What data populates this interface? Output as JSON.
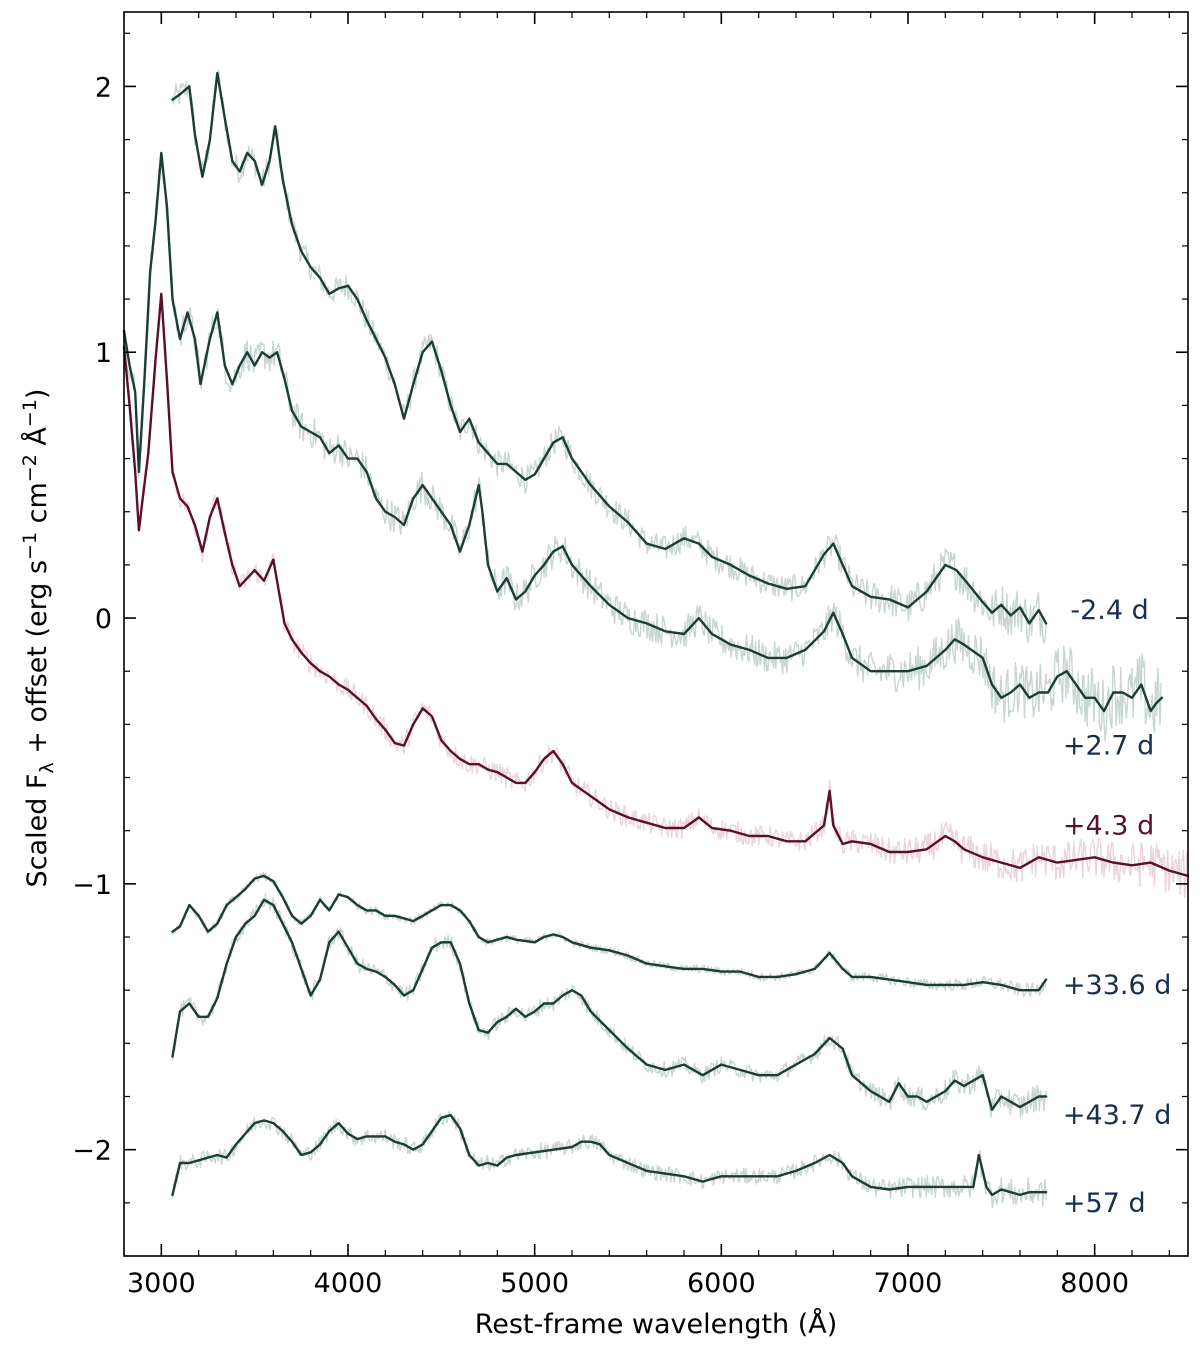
{
  "chart_data": {
    "type": "line",
    "title": "",
    "xlabel": "Rest-frame wavelength (Å)",
    "ylabel_main": "Scaled F",
    "ylabel_sub": "λ",
    "ylabel_rest": " + offset (erg s",
    "ylabel_unit_parts": [
      {
        "text": " + offset (erg s",
        "sup": false
      },
      {
        "text": "−1",
        "sup": true
      },
      {
        "text": " cm",
        "sup": false
      },
      {
        "text": "−2",
        "sup": true
      },
      {
        "text": " Å",
        "sup": false
      },
      {
        "text": "−1",
        "sup": true
      },
      {
        "text": ")",
        "sup": false
      }
    ],
    "xlim": [
      2800,
      8500
    ],
    "ylim": [
      -2.4,
      2.28
    ],
    "xticks": [
      3000,
      4000,
      5000,
      6000,
      7000,
      8000
    ],
    "xtick_labels": [
      "3000",
      "4000",
      "5000",
      "6000",
      "7000",
      "8000"
    ],
    "yticks": [
      2,
      1,
      0,
      -1,
      -2
    ],
    "ytick_labels": [
      "2",
      "1",
      "0",
      "−1",
      "−2"
    ],
    "grid": false,
    "colors": {
      "main_line": "#1b3d36",
      "noise": "#c7d6d2",
      "highlight_line": "#5a0f2f",
      "highlight_noise": "#ecd4dd",
      "label_dark": "#17304e",
      "label_highlight": "#5a0f2f",
      "axis": "#000000"
    },
    "series": [
      {
        "name": "-2.4 d",
        "label": "-2.4 d",
        "label_x": 7870,
        "label_y": 0.03,
        "highlight": false,
        "noise_amp": 0.05,
        "x": [
          3060,
          3100,
          3150,
          3180,
          3220,
          3260,
          3300,
          3340,
          3380,
          3420,
          3460,
          3500,
          3540,
          3580,
          3610,
          3650,
          3700,
          3750,
          3800,
          3850,
          3900,
          3950,
          4000,
          4050,
          4100,
          4150,
          4200,
          4250,
          4300,
          4350,
          4400,
          4450,
          4500,
          4550,
          4600,
          4650,
          4700,
          4750,
          4800,
          4850,
          4900,
          4950,
          5000,
          5050,
          5100,
          5150,
          5200,
          5300,
          5400,
          5500,
          5600,
          5700,
          5800,
          5880,
          5950,
          6050,
          6150,
          6250,
          6350,
          6450,
          6550,
          6600,
          6650,
          6700,
          6800,
          6900,
          7000,
          7100,
          7200,
          7260,
          7320,
          7400,
          7450,
          7500,
          7550,
          7600,
          7650,
          7700,
          7740
        ],
        "y": [
          1.95,
          1.97,
          2.0,
          1.82,
          1.66,
          1.8,
          2.05,
          1.88,
          1.72,
          1.68,
          1.75,
          1.72,
          1.63,
          1.72,
          1.85,
          1.65,
          1.48,
          1.38,
          1.32,
          1.28,
          1.22,
          1.24,
          1.25,
          1.2,
          1.12,
          1.05,
          0.98,
          0.88,
          0.75,
          0.88,
          1.0,
          1.04,
          0.93,
          0.8,
          0.7,
          0.75,
          0.66,
          0.62,
          0.58,
          0.58,
          0.55,
          0.52,
          0.54,
          0.6,
          0.66,
          0.68,
          0.6,
          0.5,
          0.42,
          0.36,
          0.28,
          0.26,
          0.3,
          0.28,
          0.23,
          0.2,
          0.16,
          0.13,
          0.11,
          0.12,
          0.24,
          0.28,
          0.2,
          0.12,
          0.08,
          0.07,
          0.04,
          0.1,
          0.2,
          0.18,
          0.13,
          0.06,
          0.02,
          0.05,
          0.01,
          0.04,
          -0.02,
          0.03,
          -0.02
        ]
      },
      {
        "name": "+2.7 d",
        "label": "+2.7 d",
        "label_x": 7830,
        "label_y": -0.48,
        "highlight": false,
        "noise_amp": 0.06,
        "x": [
          2800,
          2830,
          2860,
          2880,
          2910,
          2940,
          2970,
          3000,
          3030,
          3060,
          3100,
          3140,
          3180,
          3210,
          3260,
          3300,
          3340,
          3380,
          3420,
          3460,
          3500,
          3540,
          3580,
          3620,
          3660,
          3700,
          3750,
          3800,
          3850,
          3900,
          3950,
          4000,
          4050,
          4100,
          4150,
          4200,
          4250,
          4300,
          4350,
          4400,
          4450,
          4500,
          4550,
          4600,
          4650,
          4700,
          4720,
          4750,
          4800,
          4850,
          4900,
          4950,
          5000,
          5050,
          5100,
          5150,
          5200,
          5300,
          5400,
          5500,
          5600,
          5700,
          5800,
          5880,
          5950,
          6050,
          6150,
          6250,
          6350,
          6450,
          6550,
          6600,
          6650,
          6700,
          6800,
          6900,
          7000,
          7100,
          7200,
          7250,
          7300,
          7400,
          7450,
          7500,
          7550,
          7600,
          7650,
          7700,
          7750,
          7800,
          7850,
          7900,
          7950,
          8000,
          8050,
          8100,
          8150,
          8200,
          8250,
          8300,
          8330,
          8360
        ],
        "y": [
          1.08,
          0.95,
          0.85,
          0.55,
          0.9,
          1.3,
          1.5,
          1.75,
          1.55,
          1.2,
          1.05,
          1.15,
          1.05,
          0.88,
          1.05,
          1.15,
          0.95,
          0.88,
          0.95,
          1.0,
          0.95,
          1.0,
          0.98,
          1.0,
          0.9,
          0.78,
          0.72,
          0.7,
          0.68,
          0.62,
          0.65,
          0.6,
          0.6,
          0.55,
          0.45,
          0.4,
          0.38,
          0.35,
          0.45,
          0.5,
          0.45,
          0.4,
          0.35,
          0.25,
          0.35,
          0.5,
          0.4,
          0.2,
          0.1,
          0.15,
          0.07,
          0.1,
          0.16,
          0.2,
          0.25,
          0.27,
          0.2,
          0.12,
          0.05,
          0.0,
          -0.02,
          -0.05,
          -0.06,
          0.0,
          -0.06,
          -0.1,
          -0.12,
          -0.15,
          -0.15,
          -0.12,
          -0.05,
          0.02,
          -0.06,
          -0.15,
          -0.2,
          -0.2,
          -0.2,
          -0.18,
          -0.12,
          -0.08,
          -0.1,
          -0.15,
          -0.25,
          -0.3,
          -0.28,
          -0.25,
          -0.3,
          -0.28,
          -0.28,
          -0.22,
          -0.2,
          -0.25,
          -0.3,
          -0.3,
          -0.35,
          -0.28,
          -0.28,
          -0.3,
          -0.25,
          -0.35,
          -0.32,
          -0.3
        ]
      },
      {
        "name": "+4.3 d",
        "label": "+4.3 d",
        "label_x": 7830,
        "label_y": -0.78,
        "highlight": true,
        "noise_amp": 0.04,
        "x": [
          2800,
          2830,
          2860,
          2880,
          2900,
          2930,
          2950,
          2970,
          3000,
          3030,
          3060,
          3100,
          3140,
          3180,
          3220,
          3260,
          3300,
          3340,
          3380,
          3420,
          3460,
          3500,
          3550,
          3600,
          3630,
          3660,
          3700,
          3750,
          3800,
          3850,
          3900,
          3950,
          4000,
          4050,
          4100,
          4150,
          4200,
          4250,
          4300,
          4350,
          4400,
          4450,
          4500,
          4550,
          4600,
          4650,
          4700,
          4750,
          4800,
          4850,
          4900,
          4950,
          5000,
          5050,
          5100,
          5150,
          5200,
          5300,
          5400,
          5500,
          5600,
          5700,
          5800,
          5880,
          5950,
          6050,
          6150,
          6250,
          6350,
          6450,
          6550,
          6580,
          6600,
          6650,
          6700,
          6800,
          6900,
          7000,
          7100,
          7200,
          7250,
          7300,
          7400,
          7500,
          7600,
          7700,
          7800,
          7900,
          8000,
          8100,
          8200,
          8300,
          8400,
          8500
        ],
        "y": [
          1.02,
          0.8,
          0.55,
          0.33,
          0.45,
          0.62,
          0.8,
          0.98,
          1.22,
          0.9,
          0.55,
          0.45,
          0.42,
          0.35,
          0.25,
          0.38,
          0.45,
          0.32,
          0.2,
          0.12,
          0.15,
          0.18,
          0.14,
          0.22,
          0.1,
          -0.02,
          -0.08,
          -0.13,
          -0.17,
          -0.2,
          -0.22,
          -0.25,
          -0.27,
          -0.3,
          -0.33,
          -0.38,
          -0.42,
          -0.47,
          -0.48,
          -0.4,
          -0.34,
          -0.37,
          -0.46,
          -0.5,
          -0.53,
          -0.55,
          -0.55,
          -0.57,
          -0.58,
          -0.6,
          -0.62,
          -0.62,
          -0.58,
          -0.53,
          -0.5,
          -0.55,
          -0.62,
          -0.67,
          -0.72,
          -0.75,
          -0.77,
          -0.79,
          -0.79,
          -0.75,
          -0.79,
          -0.8,
          -0.82,
          -0.82,
          -0.84,
          -0.84,
          -0.78,
          -0.65,
          -0.78,
          -0.85,
          -0.84,
          -0.85,
          -0.88,
          -0.88,
          -0.87,
          -0.82,
          -0.84,
          -0.87,
          -0.9,
          -0.92,
          -0.94,
          -0.9,
          -0.92,
          -0.91,
          -0.9,
          -0.92,
          -0.93,
          -0.92,
          -0.95,
          -0.97
        ]
      },
      {
        "name": "+33.6 d",
        "label": "+33.6 d",
        "label_x": 7830,
        "label_y": -1.38,
        "highlight": false,
        "noise_amp": 0.015,
        "x": [
          3060,
          3100,
          3150,
          3200,
          3250,
          3300,
          3350,
          3400,
          3450,
          3500,
          3550,
          3600,
          3650,
          3700,
          3750,
          3800,
          3850,
          3900,
          3950,
          4000,
          4050,
          4100,
          4150,
          4200,
          4250,
          4300,
          4350,
          4400,
          4450,
          4500,
          4550,
          4600,
          4650,
          4700,
          4750,
          4800,
          4850,
          4900,
          5000,
          5050,
          5100,
          5150,
          5200,
          5300,
          5400,
          5500,
          5600,
          5700,
          5800,
          5900,
          6000,
          6100,
          6200,
          6300,
          6400,
          6500,
          6580,
          6650,
          6700,
          6800,
          6900,
          7000,
          7100,
          7200,
          7300,
          7400,
          7500,
          7600,
          7700,
          7740
        ],
        "y": [
          -1.18,
          -1.16,
          -1.08,
          -1.12,
          -1.18,
          -1.15,
          -1.08,
          -1.05,
          -1.02,
          -0.98,
          -0.97,
          -0.99,
          -1.05,
          -1.12,
          -1.15,
          -1.12,
          -1.06,
          -1.1,
          -1.04,
          -1.05,
          -1.08,
          -1.1,
          -1.1,
          -1.12,
          -1.12,
          -1.13,
          -1.14,
          -1.12,
          -1.1,
          -1.08,
          -1.08,
          -1.1,
          -1.14,
          -1.2,
          -1.22,
          -1.21,
          -1.2,
          -1.21,
          -1.22,
          -1.2,
          -1.19,
          -1.2,
          -1.22,
          -1.24,
          -1.25,
          -1.27,
          -1.3,
          -1.31,
          -1.32,
          -1.32,
          -1.33,
          -1.33,
          -1.35,
          -1.35,
          -1.34,
          -1.32,
          -1.26,
          -1.32,
          -1.35,
          -1.35,
          -1.36,
          -1.37,
          -1.38,
          -1.38,
          -1.38,
          -1.37,
          -1.38,
          -1.4,
          -1.4,
          -1.36
        ]
      },
      {
        "name": "+43.7 d",
        "label": "+43.7 d",
        "label_x": 7830,
        "label_y": -1.87,
        "highlight": false,
        "noise_amp": 0.03,
        "x": [
          3060,
          3100,
          3150,
          3200,
          3250,
          3300,
          3350,
          3400,
          3450,
          3500,
          3550,
          3600,
          3650,
          3700,
          3750,
          3800,
          3850,
          3900,
          3950,
          4000,
          4050,
          4100,
          4150,
          4200,
          4250,
          4300,
          4350,
          4400,
          4450,
          4500,
          4550,
          4600,
          4650,
          4700,
          4750,
          4800,
          4850,
          4900,
          4950,
          5000,
          5050,
          5100,
          5150,
          5200,
          5250,
          5300,
          5400,
          5500,
          5600,
          5700,
          5800,
          5900,
          6000,
          6100,
          6200,
          6300,
          6400,
          6500,
          6580,
          6650,
          6700,
          6800,
          6900,
          6950,
          7000,
          7050,
          7100,
          7200,
          7250,
          7300,
          7400,
          7450,
          7500,
          7550,
          7600,
          7650,
          7700,
          7740
        ],
        "y": [
          -1.65,
          -1.48,
          -1.45,
          -1.5,
          -1.5,
          -1.43,
          -1.3,
          -1.2,
          -1.15,
          -1.12,
          -1.06,
          -1.08,
          -1.15,
          -1.22,
          -1.32,
          -1.42,
          -1.36,
          -1.22,
          -1.18,
          -1.24,
          -1.3,
          -1.32,
          -1.33,
          -1.35,
          -1.38,
          -1.42,
          -1.4,
          -1.32,
          -1.24,
          -1.22,
          -1.22,
          -1.3,
          -1.45,
          -1.55,
          -1.56,
          -1.52,
          -1.5,
          -1.47,
          -1.5,
          -1.48,
          -1.45,
          -1.45,
          -1.42,
          -1.4,
          -1.42,
          -1.48,
          -1.55,
          -1.62,
          -1.68,
          -1.7,
          -1.68,
          -1.72,
          -1.68,
          -1.7,
          -1.72,
          -1.72,
          -1.68,
          -1.64,
          -1.58,
          -1.62,
          -1.72,
          -1.78,
          -1.82,
          -1.75,
          -1.8,
          -1.8,
          -1.82,
          -1.78,
          -1.74,
          -1.76,
          -1.72,
          -1.85,
          -1.8,
          -1.82,
          -1.84,
          -1.82,
          -1.8,
          -1.8
        ]
      },
      {
        "name": "+57 d",
        "label": "+57 d",
        "label_x": 7830,
        "label_y": -2.2,
        "highlight": false,
        "noise_amp": 0.03,
        "x": [
          3060,
          3100,
          3150,
          3200,
          3250,
          3300,
          3350,
          3400,
          3450,
          3500,
          3550,
          3600,
          3650,
          3700,
          3750,
          3800,
          3850,
          3900,
          3950,
          4000,
          4050,
          4100,
          4150,
          4200,
          4250,
          4300,
          4350,
          4400,
          4450,
          4500,
          4550,
          4600,
          4650,
          4700,
          4750,
          4800,
          4850,
          4900,
          5000,
          5100,
          5200,
          5250,
          5300,
          5350,
          5400,
          5500,
          5600,
          5700,
          5800,
          5900,
          6000,
          6100,
          6200,
          6300,
          6400,
          6500,
          6580,
          6650,
          6700,
          6800,
          6900,
          7000,
          7100,
          7200,
          7300,
          7350,
          7380,
          7420,
          7450,
          7500,
          7550,
          7600,
          7650,
          7700,
          7740
        ],
        "y": [
          -2.17,
          -2.05,
          -2.05,
          -2.04,
          -2.03,
          -2.02,
          -2.03,
          -1.98,
          -1.94,
          -1.9,
          -1.89,
          -1.9,
          -1.93,
          -1.97,
          -2.02,
          -2.01,
          -1.98,
          -1.93,
          -1.9,
          -1.94,
          -1.96,
          -1.95,
          -1.95,
          -1.95,
          -1.97,
          -1.98,
          -2.0,
          -1.98,
          -1.93,
          -1.88,
          -1.87,
          -1.92,
          -2.02,
          -2.06,
          -2.05,
          -2.06,
          -2.03,
          -2.02,
          -2.01,
          -2.0,
          -1.99,
          -1.97,
          -1.97,
          -1.98,
          -2.02,
          -2.05,
          -2.08,
          -2.09,
          -2.1,
          -2.12,
          -2.1,
          -2.1,
          -2.1,
          -2.1,
          -2.08,
          -2.05,
          -2.02,
          -2.05,
          -2.1,
          -2.14,
          -2.15,
          -2.14,
          -2.14,
          -2.14,
          -2.14,
          -2.14,
          -2.02,
          -2.14,
          -2.17,
          -2.15,
          -2.16,
          -2.17,
          -2.16,
          -2.16,
          -2.16
        ]
      }
    ]
  }
}
